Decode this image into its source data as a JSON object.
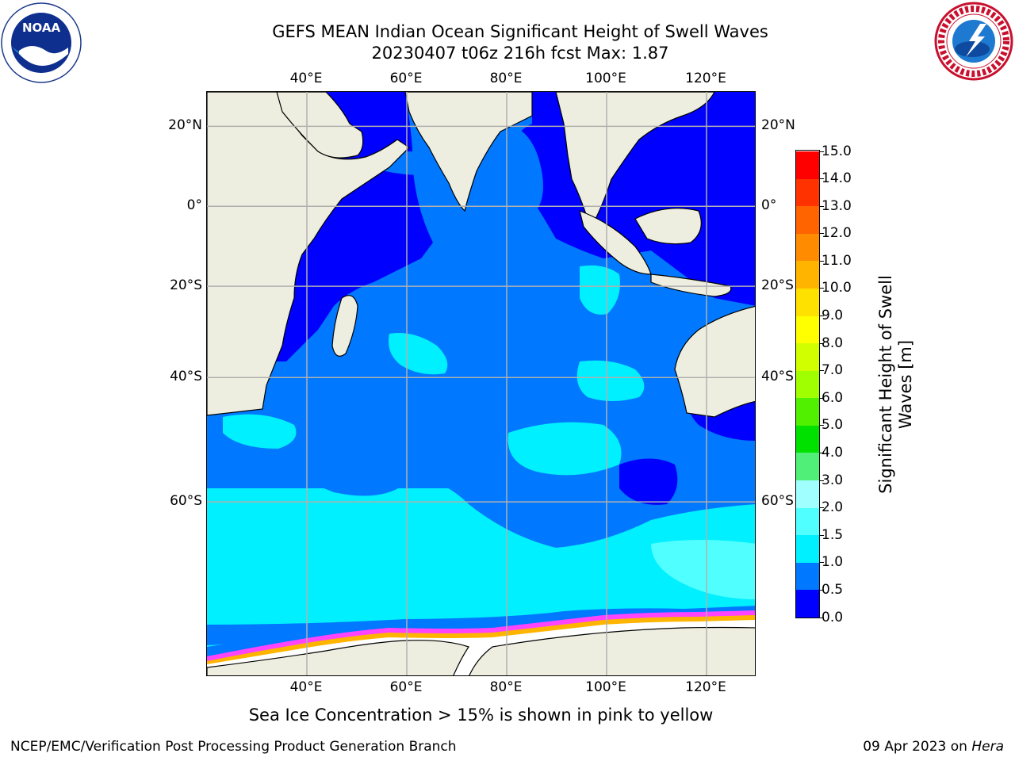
{
  "title": {
    "line1": "GEFS MEAN Indian Ocean Significant Height of Swell Waves",
    "line2": "20230407 t06z 216h fcst   Max: 1.87"
  },
  "logos": {
    "left": "noaa-logo",
    "left_text": "NOAA",
    "right": "nws-logo"
  },
  "axes": {
    "lon_labels": [
      "40°E",
      "60°E",
      "80°E",
      "100°E",
      "120°E"
    ],
    "lat_labels": [
      "20°N",
      "0°",
      "20°S",
      "40°S",
      "60°S"
    ],
    "lon_range": [
      20,
      130
    ],
    "lat_range": [
      -76,
      28
    ]
  },
  "colorbar": {
    "label": "Significant Height of Swell Waves [m]",
    "ticks": [
      "0.0",
      "0.5",
      "1.0",
      "1.5",
      "2.0",
      "3.0",
      "4.0",
      "5.0",
      "6.0",
      "7.0",
      "8.0",
      "9.0",
      "10.0",
      "11.0",
      "12.0",
      "13.0",
      "14.0",
      "15.0"
    ],
    "colors": [
      "#0000ff",
      "#0078ff",
      "#00f0ff",
      "#50ffff",
      "#a0ffff",
      "#50f078",
      "#00e100",
      "#50f000",
      "#a0ff00",
      "#d2ff00",
      "#ffff00",
      "#ffe100",
      "#ffb400",
      "#ff8c00",
      "#ff6400",
      "#ff3200",
      "#ff0000"
    ]
  },
  "map_colors": {
    "land": "#eeeee0",
    "ocean_0_0.5": "#0000ff",
    "ocean_0.5_1.0": "#0078ff",
    "ocean_1.0_1.5": "#00f0ff",
    "ocean_1.5_2.0": "#50ffff",
    "ice_edge": "#ff44ff",
    "ice_inner": "#ffb400"
  },
  "subtitle": "Sea Ice Concentration > 15% is shown in pink to yellow",
  "footer": {
    "left": "NCEP/EMC/Verification Post Processing Product Generation Branch",
    "date": "09 Apr 2023 on ",
    "machine": "Hera"
  }
}
